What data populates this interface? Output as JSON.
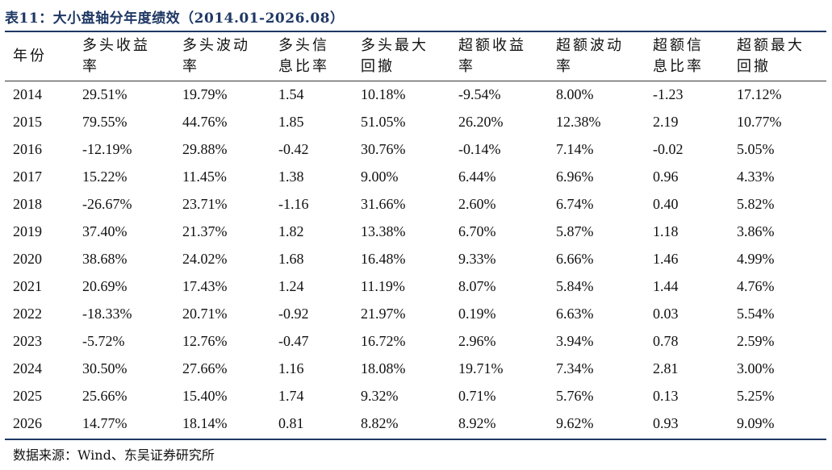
{
  "title": "表11：大小盘轴分年度绩效（2014.01-2026.08）",
  "headers": [
    [
      "年份"
    ],
    [
      "多头收益",
      "率"
    ],
    [
      "多头波动",
      "率"
    ],
    [
      "多头信",
      "息比率"
    ],
    [
      "多头最大",
      "回撤"
    ],
    [
      "超额收益",
      "率"
    ],
    [
      "超额波动",
      "率"
    ],
    [
      "超额信",
      "息比率"
    ],
    [
      "超额最大",
      "回撤"
    ]
  ],
  "rows": [
    [
      "2014",
      "29.51%",
      "19.79%",
      "1.54",
      "10.18%",
      "-9.54%",
      "8.00%",
      "-1.23",
      "17.12%"
    ],
    [
      "2015",
      "79.55%",
      "44.76%",
      "1.85",
      "51.05%",
      "26.20%",
      "12.38%",
      "2.19",
      "10.77%"
    ],
    [
      "2016",
      "-12.19%",
      "29.88%",
      "-0.42",
      "30.76%",
      "-0.14%",
      "7.14%",
      "-0.02",
      "5.05%"
    ],
    [
      "2017",
      "15.22%",
      "11.45%",
      "1.38",
      "9.00%",
      "6.44%",
      "6.96%",
      "0.96",
      "4.33%"
    ],
    [
      "2018",
      "-26.67%",
      "23.71%",
      "-1.16",
      "31.66%",
      "2.60%",
      "6.74%",
      "0.40",
      "5.82%"
    ],
    [
      "2019",
      "37.40%",
      "21.37%",
      "1.82",
      "13.38%",
      "6.70%",
      "5.87%",
      "1.18",
      "3.86%"
    ],
    [
      "2020",
      "38.68%",
      "24.02%",
      "1.68",
      "16.48%",
      "9.33%",
      "6.66%",
      "1.46",
      "4.99%"
    ],
    [
      "2021",
      "20.69%",
      "17.43%",
      "1.24",
      "11.19%",
      "8.07%",
      "5.84%",
      "1.44",
      "4.76%"
    ],
    [
      "2022",
      "-18.33%",
      "20.71%",
      "-0.92",
      "21.97%",
      "0.19%",
      "6.63%",
      "0.03",
      "5.54%"
    ],
    [
      "2023",
      "-5.72%",
      "12.76%",
      "-0.47",
      "16.72%",
      "2.96%",
      "3.94%",
      "0.78",
      "2.59%"
    ],
    [
      "2024",
      "30.50%",
      "27.66%",
      "1.16",
      "18.08%",
      "19.71%",
      "7.34%",
      "2.81",
      "3.00%"
    ],
    [
      "2025",
      "25.66%",
      "15.40%",
      "1.74",
      "9.32%",
      "0.71%",
      "5.76%",
      "0.13",
      "5.25%"
    ],
    [
      "2026",
      "14.77%",
      "18.14%",
      "0.81",
      "8.82%",
      "8.92%",
      "9.62%",
      "0.93",
      "9.09%"
    ]
  ],
  "source": "数据来源：Wind、东吴证券研究所",
  "colors": {
    "title": "#1f3864",
    "rule": "#1f3864",
    "text": "#111111"
  }
}
